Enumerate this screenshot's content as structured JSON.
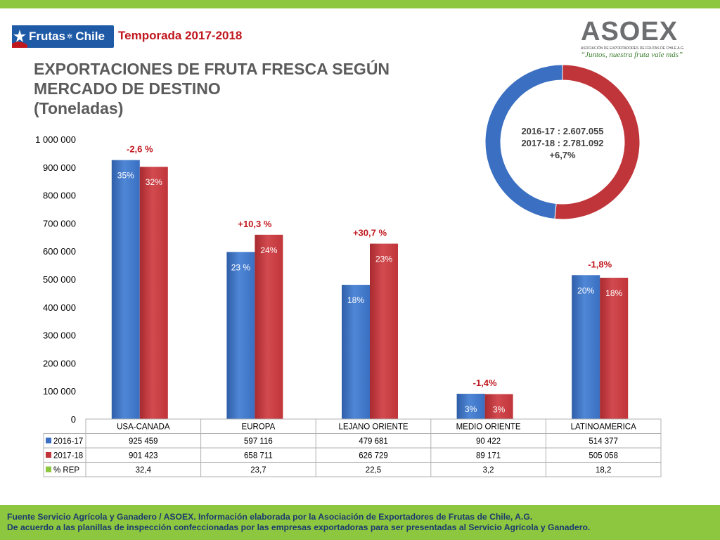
{
  "header": {
    "brand_logo": "Frutas de Chile",
    "brand_logo_text": "Frutas",
    "brand_logo_text2": "Chile",
    "season": "Temporada 2017-2018",
    "title_line1": "EXPORTACIONES DE FRUTA FRESCA SEGÚN",
    "title_line2": "MERCADO DE DESTINO",
    "title_line3": "(Toneladas)"
  },
  "asoex": {
    "name": "ASOEX",
    "subtitle": "ASOCIACIÓN DE EXPORTADORES DE FRUTAS DE CHILE A.G.",
    "tagline": "“Juntos, nuestra fruta vale más”"
  },
  "donut": {
    "line1": "2016-17 : 2.607.055",
    "line2": "2017-18 : 2.781.092",
    "line3": "+6,7%",
    "values": [
      2607055,
      2781092
    ]
  },
  "colors": {
    "blue": "#3a6fc1",
    "red": "#c0353a",
    "green": "#8dc63f"
  },
  "chart_data": {
    "type": "bar",
    "categories": [
      "USA-CANADA",
      "EUROPA",
      "LEJANO ORIENTE",
      "MEDIO ORIENTE",
      "LATINOAMERICA"
    ],
    "series": [
      {
        "name": "2016-17",
        "values": [
          925459,
          597116,
          479681,
          90422,
          514377
        ],
        "shares": [
          "35%",
          "23 %",
          "18%",
          "3%",
          "20%"
        ]
      },
      {
        "name": "2017-18",
        "values": [
          901423,
          658711,
          626729,
          89171,
          505058
        ],
        "shares": [
          "32%",
          "24%",
          "23%",
          "3%",
          "18%"
        ]
      }
    ],
    "changes": [
      "-2,6 %",
      "+10,3 %",
      "+30,7 %",
      "-1,4%",
      "-1,8%"
    ],
    "yticks": [
      "0",
      "100 000",
      "200 000",
      "300 000",
      "400 000",
      "500 000",
      "600 000",
      "700 000",
      "800 000",
      "900 000",
      "1 000 000"
    ],
    "ylim": [
      0,
      1000000
    ],
    "table": {
      "rows": [
        {
          "label": "2016-17",
          "cells": [
            "925 459",
            "597 116",
            "479 681",
            "90 422",
            "514 377"
          ]
        },
        {
          "label": "2017-18",
          "cells": [
            "901 423",
            "658 711",
            "626 729",
            "89 171",
            "505 058"
          ]
        },
        {
          "label": "% REP",
          "cells": [
            "32,4",
            "23,7",
            "22,5",
            "3,2",
            "18,2"
          ]
        }
      ]
    }
  },
  "footer": {
    "line1": "Fuente Servicio Agrícola y Ganadero / ASOEX. Información elaborada por la Asociación de Exportadores de  Frutas de Chile, A.G.",
    "line2": "De acuerdo a las planillas de inspección confeccionadas por las empresas exportadoras  para ser presentadas al Servicio Agrícola y Ganadero."
  }
}
